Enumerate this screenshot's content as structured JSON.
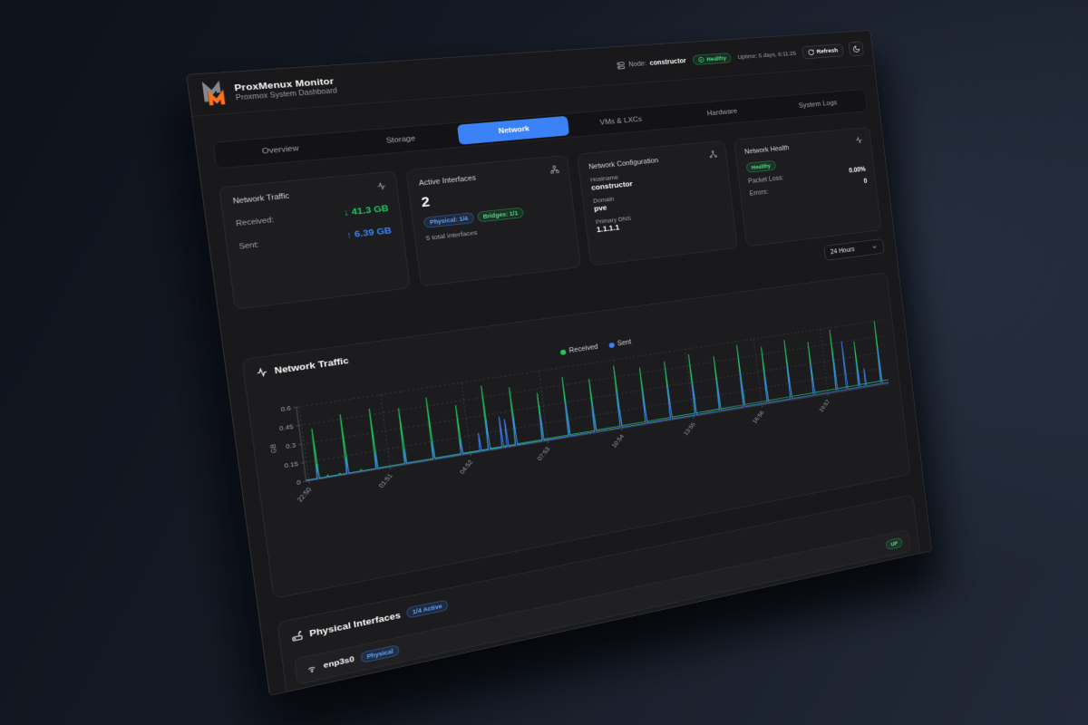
{
  "topbar": {
    "node_label": "Node:",
    "node_value": "constructor",
    "health": "Healthy",
    "uptime": "Uptime: 5 days, 6:11:25",
    "refresh": "Refresh"
  },
  "brand": {
    "title": "ProxMenux Monitor",
    "subtitle": "Proxmox System Dashboard"
  },
  "tabs": [
    {
      "label": "Overview"
    },
    {
      "label": "Storage"
    },
    {
      "label": "Network"
    },
    {
      "label": "VMs & LXCs"
    },
    {
      "label": "Hardware"
    },
    {
      "label": "System Logs"
    }
  ],
  "active_tab": "Network",
  "cards": {
    "traffic": {
      "title": "Network Traffic",
      "received_label": "Received:",
      "received": "41.3 GB",
      "sent_label": "Sent:",
      "sent": "6.39 GB"
    },
    "interfaces": {
      "title": "Active Interfaces",
      "count": "2",
      "physical_badge": "Physical: 1/4",
      "bridges_badge": "Bridges: 1/1",
      "total": "5 total interfaces"
    },
    "config": {
      "title": "Network Configuration",
      "hostname_label": "Hostname",
      "hostname": "constructor",
      "domain_label": "Domain",
      "domain": "pve",
      "dns_label": "Primary DNS",
      "dns": "1.1.1.1"
    },
    "health": {
      "title": "Network Health",
      "status": "Healthy",
      "packet_loss_label": "Packet Loss:",
      "packet_loss": "0.00%",
      "errors_label": "Errors:",
      "errors": "0"
    }
  },
  "range_select": {
    "value": "24 Hours"
  },
  "chart_data": {
    "type": "line",
    "title": "Network Traffic",
    "ylabel": "GB",
    "ylim": [
      0,
      0.6
    ],
    "yticks": [
      0,
      0.15,
      0.3,
      0.45,
      0.6
    ],
    "xticks": [
      "22:50",
      "01:51",
      "04:52",
      "07:53",
      "10:54",
      "13:55",
      "16:56",
      "19:57"
    ],
    "xtick_pos": [
      0.004,
      0.1257,
      0.2515,
      0.3772,
      0.5029,
      0.6287,
      0.7544,
      0.8801
    ],
    "legend_position": "top",
    "grid": "dashed",
    "series": [
      {
        "name": "Received",
        "color": "#22c55e"
      },
      {
        "name": "Sent",
        "color": "#3b82f6"
      }
    ],
    "received": {
      "baseline": [
        0.006,
        0.036
      ],
      "spikes": [
        [
          0.018,
          0.41
        ],
        [
          0.032,
          0.02
        ],
        [
          0.05,
          0.018
        ],
        [
          0.062,
          0.49
        ],
        [
          0.082,
          0.02
        ],
        [
          0.106,
          0.5
        ],
        [
          0.15,
          0.47
        ],
        [
          0.194,
          0.52
        ],
        [
          0.238,
          0.42
        ],
        [
          0.282,
          0.55
        ],
        [
          0.326,
          0.5
        ],
        [
          0.37,
          0.42
        ],
        [
          0.414,
          0.52
        ],
        [
          0.458,
          0.47
        ],
        [
          0.502,
          0.55
        ],
        [
          0.546,
          0.5
        ],
        [
          0.59,
          0.52
        ],
        [
          0.634,
          0.55
        ],
        [
          0.678,
          0.5
        ],
        [
          0.722,
          0.57
        ],
        [
          0.766,
          0.52
        ],
        [
          0.81,
          0.55
        ],
        [
          0.854,
          0.5
        ],
        [
          0.898,
          0.58
        ],
        [
          0.942,
          0.44
        ],
        [
          0.986,
          0.6
        ]
      ]
    },
    "sent": {
      "baseline": [
        0.005,
        0.012
      ],
      "spikes": [
        [
          0.018,
          0.12
        ],
        [
          0.062,
          0.14
        ],
        [
          0.106,
          0.15
        ],
        [
          0.15,
          0.13
        ],
        [
          0.194,
          0.15
        ],
        [
          0.238,
          0.14
        ],
        [
          0.268,
          0.16
        ],
        [
          0.282,
          0.27
        ],
        [
          0.304,
          0.27
        ],
        [
          0.312,
          0.24
        ],
        [
          0.326,
          0.28
        ],
        [
          0.37,
          0.24
        ],
        [
          0.414,
          0.3
        ],
        [
          0.458,
          0.27
        ],
        [
          0.502,
          0.32
        ],
        [
          0.546,
          0.29
        ],
        [
          0.59,
          0.3
        ],
        [
          0.634,
          0.32
        ],
        [
          0.678,
          0.29
        ],
        [
          0.722,
          0.33
        ],
        [
          0.766,
          0.3
        ],
        [
          0.81,
          0.32
        ],
        [
          0.854,
          0.29
        ],
        [
          0.898,
          0.34
        ],
        [
          0.918,
          0.46
        ],
        [
          0.942,
          0.25
        ],
        [
          0.955,
          0.18
        ],
        [
          0.986,
          0.35
        ]
      ]
    }
  },
  "physical": {
    "title": "Physical Interfaces",
    "active_badge": "1/4 Active",
    "rows": [
      {
        "name": "enp3s0",
        "type_badge": "Physical",
        "status": "UP"
      }
    ]
  }
}
